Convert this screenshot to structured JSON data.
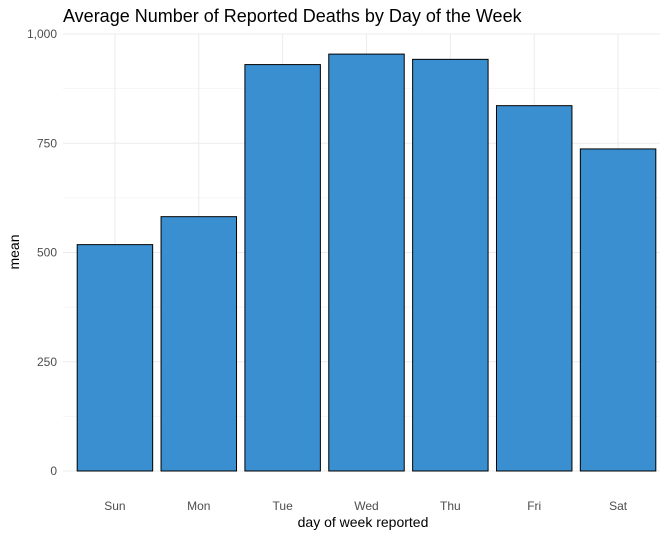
{
  "chart_data": {
    "type": "bar",
    "title": "Average Number of Reported Deaths by Day of the Week",
    "xlabel": "day of week reported",
    "ylabel": "mean",
    "categories": [
      "Sun",
      "Mon",
      "Tue",
      "Wed",
      "Thu",
      "Fri",
      "Sat"
    ],
    "values": [
      518,
      582,
      930,
      954,
      942,
      836,
      737
    ],
    "ylim": [
      0,
      1000
    ],
    "y_ticks": [
      0,
      250,
      500,
      750,
      1000
    ],
    "y_tick_labels": [
      "0",
      "250",
      "500",
      "750",
      "1,000"
    ],
    "grid": true,
    "legend": "none",
    "bar_color": "#3a8fd1",
    "bar_border_color": "#000000"
  }
}
